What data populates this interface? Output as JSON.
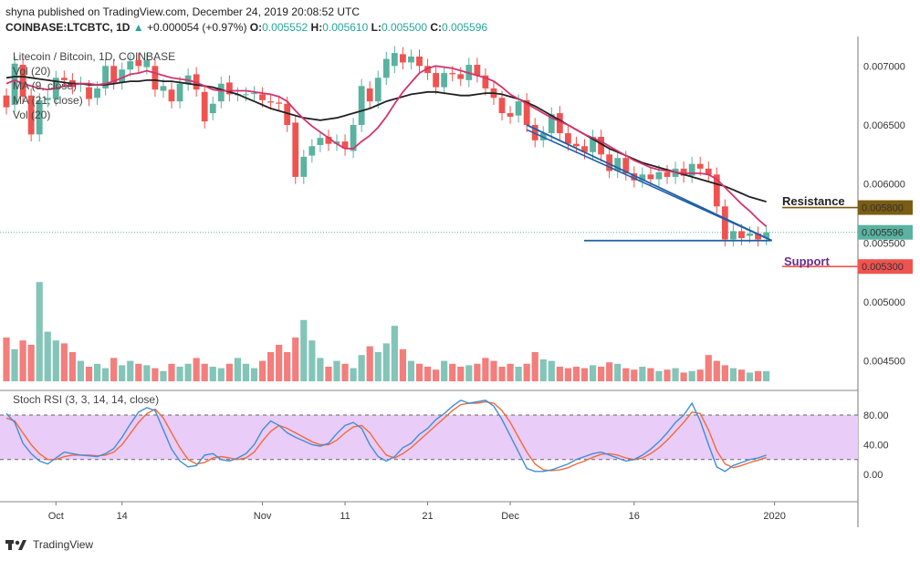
{
  "header": {
    "published": "shyna published on TradingView.com, December 24, 2019 20:08:52 UTC",
    "symbol": "COINBASE:LTCBTC, 1D",
    "change_text": "+0.000054 (+0.97%)",
    "o_label": "O:",
    "o_val": "0.005552",
    "h_label": "H:",
    "h_val": "0.005610",
    "l_label": "L:",
    "l_val": "0.005500",
    "c_label": "C:",
    "c_val": "0.005596"
  },
  "legend": {
    "title": "Litecoin / Bitcoin, 1D, COINBASE",
    "vol": "Vol (20)",
    "ma9": "MA (9, close)",
    "ma21": "MA (21, close)",
    "vol2": "Vol (20)"
  },
  "annotations": {
    "resistance": "Resistance",
    "support": "Support",
    "resistance_price": "0.005800",
    "support_price": "0.005300",
    "current_price": "0.005596",
    "low_price": "0.005500"
  },
  "rsi_label": "Stoch RSI (3, 3, 14, 14, close)",
  "footer": {
    "brand": "TradingView"
  },
  "colors": {
    "bull": "#5ab2a0",
    "bear": "#ef5350",
    "ma9": "#d6336c",
    "ma21": "#212121",
    "trend": "#1f5fa8",
    "resistance": "#7a5c12",
    "support": "#ef5350",
    "rsi_k": "#3f8fd6",
    "rsi_d": "#f26b3a",
    "rsi_band": "#e9ccf7"
  },
  "chart_data": {
    "type": "candlestick",
    "price_axis": [
      "0.007000",
      "0.006500",
      "0.006000",
      "0.005500",
      "0.005000",
      "0.004500"
    ],
    "price_ticks": [
      0.007,
      0.0065,
      0.006,
      0.0055,
      0.005,
      0.0045
    ],
    "ylim": [
      0.00425,
      0.00725
    ],
    "x_labels": [
      "Oct",
      "14",
      "Nov",
      "11",
      "21",
      "Dec",
      "16",
      "2020"
    ],
    "x_label_days": [
      6,
      14,
      31,
      41,
      51,
      61,
      76,
      93
    ],
    "rsi_axis": [
      "80.00",
      "40.00",
      "0.00"
    ],
    "rsi_ticks": [
      80,
      40,
      0
    ],
    "rsi_band": [
      20,
      80
    ],
    "candles": [
      [
        0.00675,
        0.00665
      ],
      [
        0.00667,
        0.00702
      ],
      [
        0.00701,
        0.00674
      ],
      [
        0.00675,
        0.00642
      ],
      [
        0.00642,
        0.00671
      ],
      [
        0.00671,
        0.00673
      ],
      [
        0.00672,
        0.0069
      ],
      [
        0.0069,
        0.00688
      ],
      [
        0.00688,
        0.00682
      ],
      [
        0.00684,
        0.00685
      ],
      [
        0.00682,
        0.00672
      ],
      [
        0.00673,
        0.00681
      ],
      [
        0.00681,
        0.007
      ],
      [
        0.007,
        0.00686
      ],
      [
        0.00686,
        0.00697
      ],
      [
        0.00697,
        0.00704
      ],
      [
        0.00705,
        0.007
      ],
      [
        0.00699,
        0.00705
      ],
      [
        0.007,
        0.0068
      ],
      [
        0.00679,
        0.00683
      ],
      [
        0.0068,
        0.0067
      ],
      [
        0.0067,
        0.00685
      ],
      [
        0.00685,
        0.00692
      ],
      [
        0.00693,
        0.0068
      ],
      [
        0.00678,
        0.00653
      ],
      [
        0.0066,
        0.00668
      ],
      [
        0.0067,
        0.00685
      ],
      [
        0.00686,
        0.00676
      ],
      [
        0.00676,
        0.00676
      ],
      [
        0.00676,
        0.00676
      ],
      [
        0.00677,
        0.00677
      ],
      [
        0.00676,
        0.00671
      ],
      [
        0.0067,
        0.00669
      ],
      [
        0.00669,
        0.00668
      ],
      [
        0.00668,
        0.0065
      ],
      [
        0.00652,
        0.00606
      ],
      [
        0.00606,
        0.00623
      ],
      [
        0.00624,
        0.00632
      ],
      [
        0.00633,
        0.00639
      ],
      [
        0.0064,
        0.00634
      ],
      [
        0.00634,
        0.00636
      ],
      [
        0.00636,
        0.0063
      ],
      [
        0.00628,
        0.0065
      ],
      [
        0.0065,
        0.00683
      ],
      [
        0.00681,
        0.0067
      ],
      [
        0.0067,
        0.0069
      ],
      [
        0.0069,
        0.00706
      ],
      [
        0.007,
        0.00711
      ],
      [
        0.0071,
        0.00703
      ],
      [
        0.00703,
        0.00708
      ],
      [
        0.00708,
        0.007
      ],
      [
        0.007,
        0.00694
      ],
      [
        0.00694,
        0.00682
      ],
      [
        0.00682,
        0.00694
      ],
      [
        0.00694,
        0.00693
      ],
      [
        0.00693,
        0.00689
      ],
      [
        0.00688,
        0.00701
      ],
      [
        0.00701,
        0.00692
      ],
      [
        0.00692,
        0.00681
      ],
      [
        0.00681,
        0.00673
      ],
      [
        0.00673,
        0.0066
      ],
      [
        0.0066,
        0.00657
      ],
      [
        0.00658,
        0.0067
      ],
      [
        0.00671,
        0.0065
      ],
      [
        0.0065,
        0.00637
      ],
      [
        0.00637,
        0.00643
      ],
      [
        0.00643,
        0.00659
      ],
      [
        0.0066,
        0.00643
      ],
      [
        0.00643,
        0.00634
      ],
      [
        0.00634,
        0.00632
      ],
      [
        0.00632,
        0.00627
      ],
      [
        0.00627,
        0.0064
      ],
      [
        0.0064,
        0.00625
      ],
      [
        0.00625,
        0.00611
      ],
      [
        0.00611,
        0.00622
      ],
      [
        0.00622,
        0.00609
      ],
      [
        0.00609,
        0.00603
      ],
      [
        0.00603,
        0.00608
      ],
      [
        0.00608,
        0.00604
      ],
      [
        0.00604,
        0.0061
      ],
      [
        0.0061,
        0.00606
      ],
      [
        0.00606,
        0.00613
      ],
      [
        0.00613,
        0.00607
      ],
      [
        0.00607,
        0.00617
      ],
      [
        0.00617,
        0.00613
      ],
      [
        0.00613,
        0.00608
      ],
      [
        0.00608,
        0.00581
      ],
      [
        0.00581,
        0.00553
      ],
      [
        0.00553,
        0.0056
      ],
      [
        0.0056,
        0.00554
      ],
      [
        0.00556,
        0.00558
      ],
      [
        0.00558,
        0.00553
      ],
      [
        0.00554,
        0.00559
      ]
    ],
    "ma9": [
      0.00685,
      0.00688,
      0.00685,
      0.00683,
      0.00681,
      0.0068,
      0.00681,
      0.00683,
      0.00684,
      0.00685,
      0.00685,
      0.00684,
      0.00685,
      0.00687,
      0.0069,
      0.00693,
      0.00694,
      0.00696,
      0.00694,
      0.00692,
      0.0069,
      0.00689,
      0.00688,
      0.00686,
      0.00683,
      0.0068,
      0.00679,
      0.00679,
      0.00679,
      0.00679,
      0.00678,
      0.00677,
      0.00676,
      0.00674,
      0.0067,
      0.00662,
      0.00655,
      0.00649,
      0.00644,
      0.00639,
      0.00634,
      0.0063,
      0.0063,
      0.00636,
      0.00641,
      0.00648,
      0.00657,
      0.00668,
      0.00678,
      0.00686,
      0.00694,
      0.00698,
      0.007,
      0.00699,
      0.00698,
      0.00696,
      0.00694,
      0.00692,
      0.0069,
      0.00687,
      0.00682,
      0.00676,
      0.00672,
      0.00668,
      0.00664,
      0.0066,
      0.00656,
      0.00653,
      0.0065,
      0.00646,
      0.00642,
      0.00639,
      0.00636,
      0.00632,
      0.00628,
      0.00624,
      0.0062,
      0.00617,
      0.00614,
      0.00612,
      0.00611,
      0.0061,
      0.00609,
      0.00609,
      0.00609,
      0.00608,
      0.00604,
      0.00597,
      0.0059,
      0.00583,
      0.00577,
      0.0057,
      0.00564
    ],
    "ma21": [
      0.0069,
      0.00691,
      0.00691,
      0.0069,
      0.00689,
      0.00688,
      0.00687,
      0.00686,
      0.00685,
      0.00685,
      0.00684,
      0.00684,
      0.00684,
      0.00685,
      0.00686,
      0.00687,
      0.00687,
      0.00688,
      0.00688,
      0.00687,
      0.00687,
      0.00686,
      0.00685,
      0.00684,
      0.00683,
      0.00682,
      0.0068,
      0.00678,
      0.00676,
      0.00673,
      0.0067,
      0.00667,
      0.00664,
      0.00662,
      0.0066,
      0.00658,
      0.00656,
      0.00655,
      0.00654,
      0.00655,
      0.00656,
      0.00658,
      0.0066,
      0.00662,
      0.00664,
      0.00667,
      0.0067,
      0.00672,
      0.00674,
      0.00676,
      0.00677,
      0.00678,
      0.00678,
      0.00677,
      0.00676,
      0.00675,
      0.00675,
      0.00676,
      0.00677,
      0.00677,
      0.00676,
      0.00674,
      0.00672,
      0.00669,
      0.00666,
      0.00662,
      0.00658,
      0.00654,
      0.0065,
      0.00646,
      0.00642,
      0.00638,
      0.00634,
      0.0063,
      0.00627,
      0.00624,
      0.00621,
      0.00618,
      0.00616,
      0.00614,
      0.00612,
      0.0061,
      0.00608,
      0.00606,
      0.00604,
      0.00602,
      0.006,
      0.00598,
      0.00595,
      0.00592,
      0.00589,
      0.00587,
      0.00585
    ],
    "volume": [
      30,
      22,
      28,
      25,
      68,
      34,
      28,
      26,
      20,
      14,
      10,
      12,
      9,
      16,
      11,
      14,
      12,
      11,
      9,
      7,
      12,
      10,
      12,
      16,
      12,
      10,
      9,
      12,
      16,
      12,
      9,
      14,
      20,
      25,
      20,
      30,
      42,
      28,
      16,
      10,
      14,
      12,
      9,
      18,
      24,
      20,
      26,
      38,
      22,
      14,
      12,
      10,
      8,
      14,
      12,
      10,
      11,
      12,
      16,
      14,
      10,
      12,
      10,
      12,
      20,
      15,
      14,
      10,
      9,
      10,
      9,
      11,
      10,
      13,
      12,
      9,
      8,
      10,
      9,
      7,
      8,
      9,
      6,
      7,
      8,
      18,
      14,
      11,
      9,
      8,
      6,
      7,
      7
    ],
    "rsi_k": [
      82,
      70,
      42,
      28,
      18,
      14,
      22,
      30,
      28,
      26,
      25,
      24,
      28,
      35,
      50,
      68,
      84,
      90,
      86,
      60,
      34,
      18,
      10,
      12,
      26,
      28,
      20,
      18,
      22,
      28,
      40,
      60,
      72,
      66,
      56,
      50,
      45,
      40,
      38,
      42,
      55,
      66,
      70,
      62,
      40,
      24,
      18,
      24,
      36,
      42,
      54,
      62,
      74,
      82,
      92,
      100,
      96,
      98,
      100,
      92,
      74,
      52,
      30,
      8,
      4,
      4,
      6,
      10,
      14,
      20,
      24,
      28,
      30,
      26,
      22,
      18,
      20,
      26,
      34,
      44,
      56,
      70,
      80,
      96,
      72,
      40,
      10,
      4,
      12,
      16,
      20,
      22,
      26
    ],
    "rsi_d": [
      76,
      72,
      56,
      40,
      28,
      20,
      20,
      24,
      26,
      26,
      26,
      25,
      26,
      30,
      40,
      55,
      70,
      82,
      88,
      76,
      56,
      36,
      20,
      14,
      16,
      22,
      24,
      22,
      20,
      22,
      30,
      45,
      58,
      66,
      62,
      56,
      50,
      44,
      40,
      40,
      46,
      56,
      64,
      66,
      56,
      40,
      26,
      22,
      28,
      36,
      46,
      56,
      66,
      76,
      86,
      94,
      96,
      96,
      98,
      96,
      86,
      70,
      50,
      30,
      14,
      6,
      5,
      6,
      9,
      14,
      18,
      23,
      27,
      28,
      26,
      22,
      20,
      22,
      28,
      36,
      46,
      58,
      70,
      84,
      82,
      60,
      32,
      14,
      9,
      12,
      16,
      19,
      23
    ]
  }
}
